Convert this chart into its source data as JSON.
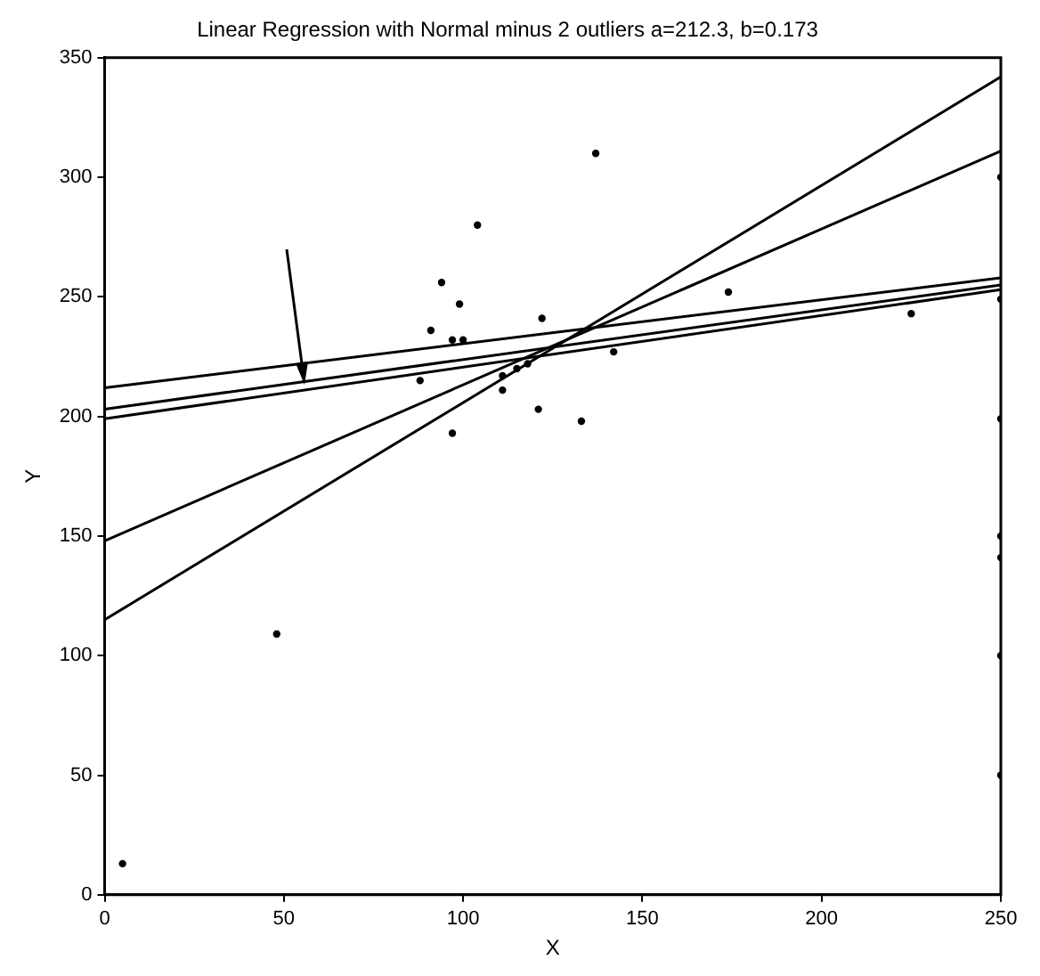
{
  "chart_data": {
    "type": "scatter",
    "title": "Linear Regression with Normal minus 2 outliers a=212.3, b=0.173",
    "xlabel": "X",
    "ylabel": "Y",
    "xlim": [
      0,
      250
    ],
    "ylim": [
      0,
      350
    ],
    "xticks": [
      0,
      50,
      100,
      150,
      200,
      250
    ],
    "yticks": [
      0,
      50,
      100,
      150,
      200,
      250,
      300,
      350
    ],
    "grid": false,
    "series": [
      {
        "type": "scatter",
        "color": "#000000",
        "marker": "circle",
        "x": [
          104,
          94,
          99,
          91,
          97,
          100,
          122,
          88,
          121,
          97,
          111,
          111,
          137,
          174,
          225,
          142,
          133,
          48,
          5,
          115,
          118,
          250,
          250,
          250,
          250,
          250,
          250,
          250
        ],
        "values": [
          280,
          256,
          247,
          236,
          232,
          232,
          241,
          215,
          203,
          193,
          217,
          211,
          310,
          252,
          243,
          227,
          198,
          109,
          13,
          220,
          222,
          300,
          249,
          199,
          150,
          141,
          100,
          50
        ]
      },
      {
        "type": "line",
        "color": "#000000",
        "x": [
          0,
          250
        ],
        "values": [
          115,
          342
        ]
      },
      {
        "type": "line",
        "color": "#000000",
        "x": [
          0,
          250
        ],
        "values": [
          148,
          311
        ]
      },
      {
        "type": "line",
        "color": "#000000",
        "x": [
          0,
          250
        ],
        "values": [
          212,
          258
        ]
      },
      {
        "type": "line",
        "color": "#000000",
        "x": [
          0,
          250
        ],
        "values": [
          203,
          255
        ]
      },
      {
        "type": "line",
        "color": "#000000",
        "x": [
          0,
          250
        ],
        "values": [
          199,
          253
        ]
      }
    ]
  }
}
